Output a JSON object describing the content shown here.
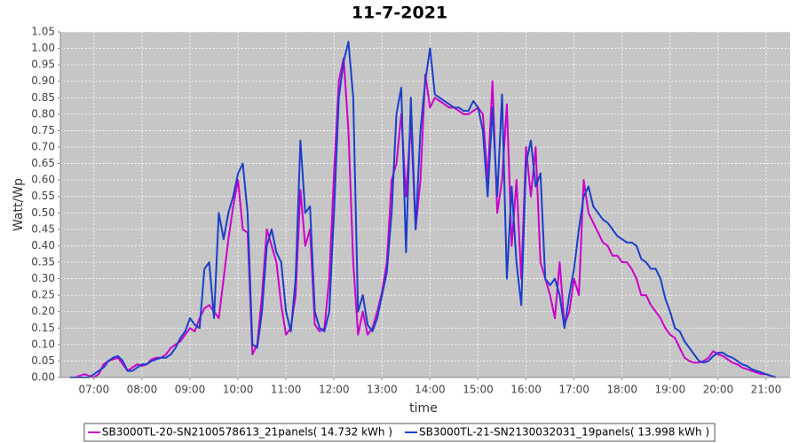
{
  "chart_data": {
    "type": "line",
    "title": "11-7-2021",
    "x_label": "time",
    "y_label": "Watt/Wp",
    "x": [
      6.5,
      6.6,
      6.7,
      6.8,
      6.9,
      7.0,
      7.1,
      7.2,
      7.3,
      7.4,
      7.5,
      7.6,
      7.7,
      7.8,
      7.9,
      8.0,
      8.1,
      8.2,
      8.3,
      8.4,
      8.5,
      8.6,
      8.7,
      8.8,
      8.9,
      9.0,
      9.1,
      9.2,
      9.3,
      9.4,
      9.5,
      9.6,
      9.7,
      9.8,
      9.9,
      10.0,
      10.1,
      10.2,
      10.3,
      10.4,
      10.5,
      10.6,
      10.7,
      10.8,
      10.9,
      11.0,
      11.1,
      11.2,
      11.3,
      11.4,
      11.5,
      11.6,
      11.7,
      11.8,
      11.9,
      12.0,
      12.1,
      12.2,
      12.3,
      12.4,
      12.5,
      12.6,
      12.7,
      12.8,
      12.9,
      13.0,
      13.1,
      13.2,
      13.3,
      13.4,
      13.5,
      13.6,
      13.7,
      13.8,
      13.9,
      14.0,
      14.1,
      14.2,
      14.3,
      14.4,
      14.5,
      14.6,
      14.7,
      14.8,
      14.9,
      15.0,
      15.1,
      15.2,
      15.3,
      15.4,
      15.5,
      15.6,
      15.7,
      15.8,
      15.9,
      16.0,
      16.1,
      16.2,
      16.3,
      16.4,
      16.5,
      16.6,
      16.7,
      16.8,
      16.9,
      17.0,
      17.1,
      17.2,
      17.3,
      17.4,
      17.5,
      17.6,
      17.7,
      17.8,
      17.9,
      18.0,
      18.1,
      18.2,
      18.3,
      18.4,
      18.5,
      18.6,
      18.7,
      18.8,
      18.9,
      19.0,
      19.1,
      19.2,
      19.3,
      19.4,
      19.5,
      19.6,
      19.7,
      19.8,
      19.9,
      20.0,
      20.1,
      20.2,
      20.3,
      20.4,
      20.5,
      20.6,
      20.7,
      20.8,
      20.9,
      21.0,
      21.1,
      21.2
    ],
    "series": [
      {
        "name": "SB3000TL-20-SN2100578613_21panels( 14.732 kWh )",
        "color": "#cc00cc",
        "values": [
          0,
          0,
          0.005,
          0.01,
          0.005,
          0,
          0.01,
          0.04,
          0.05,
          0.055,
          0.06,
          0.04,
          0.02,
          0.03,
          0.04,
          0.035,
          0.04,
          0.055,
          0.06,
          0.06,
          0.07,
          0.09,
          0.1,
          0.11,
          0.13,
          0.15,
          0.14,
          0.18,
          0.21,
          0.22,
          0.2,
          0.18,
          0.3,
          0.42,
          0.52,
          0.6,
          0.45,
          0.44,
          0.07,
          0.1,
          0.25,
          0.45,
          0.4,
          0.35,
          0.22,
          0.13,
          0.15,
          0.25,
          0.57,
          0.4,
          0.45,
          0.16,
          0.14,
          0.15,
          0.3,
          0.62,
          0.9,
          0.97,
          0.75,
          0.35,
          0.13,
          0.2,
          0.13,
          0.15,
          0.2,
          0.26,
          0.35,
          0.6,
          0.65,
          0.8,
          0.55,
          0.78,
          0.45,
          0.6,
          0.92,
          0.82,
          0.85,
          0.84,
          0.83,
          0.82,
          0.82,
          0.81,
          0.8,
          0.8,
          0.81,
          0.82,
          0.8,
          0.6,
          0.9,
          0.5,
          0.6,
          0.83,
          0.4,
          0.6,
          0.3,
          0.7,
          0.55,
          0.7,
          0.35,
          0.3,
          0.25,
          0.18,
          0.35,
          0.16,
          0.2,
          0.3,
          0.25,
          0.6,
          0.5,
          0.47,
          0.44,
          0.41,
          0.4,
          0.37,
          0.37,
          0.35,
          0.35,
          0.33,
          0.3,
          0.25,
          0.25,
          0.22,
          0.2,
          0.18,
          0.15,
          0.13,
          0.12,
          0.09,
          0.06,
          0.05,
          0.045,
          0.045,
          0.05,
          0.06,
          0.08,
          0.07,
          0.065,
          0.055,
          0.045,
          0.04,
          0.03,
          0.025,
          0.02,
          0.015,
          0.01,
          0.01,
          0.005,
          0
        ]
      },
      {
        "name": "SB3000TL-21-SN2130032031_19panels( 13.998 kWh )",
        "color": "#1a3fcc",
        "values": [
          0,
          0,
          0,
          0,
          0,
          0.01,
          0.02,
          0.03,
          0.05,
          0.06,
          0.065,
          0.05,
          0.02,
          0.02,
          0.03,
          0.04,
          0.04,
          0.05,
          0.055,
          0.06,
          0.06,
          0.07,
          0.09,
          0.12,
          0.14,
          0.18,
          0.16,
          0.15,
          0.33,
          0.35,
          0.18,
          0.5,
          0.42,
          0.5,
          0.55,
          0.62,
          0.65,
          0.5,
          0.1,
          0.09,
          0.2,
          0.4,
          0.45,
          0.38,
          0.35,
          0.2,
          0.14,
          0.3,
          0.72,
          0.5,
          0.52,
          0.2,
          0.15,
          0.14,
          0.2,
          0.5,
          0.85,
          0.96,
          1.02,
          0.85,
          0.2,
          0.25,
          0.16,
          0.14,
          0.18,
          0.25,
          0.32,
          0.5,
          0.8,
          0.88,
          0.38,
          0.85,
          0.45,
          0.75,
          0.9,
          1.0,
          0.86,
          0.85,
          0.84,
          0.83,
          0.82,
          0.82,
          0.81,
          0.81,
          0.84,
          0.82,
          0.75,
          0.55,
          0.82,
          0.55,
          0.86,
          0.3,
          0.58,
          0.35,
          0.22,
          0.65,
          0.72,
          0.58,
          0.62,
          0.3,
          0.28,
          0.3,
          0.25,
          0.15,
          0.25,
          0.33,
          0.45,
          0.55,
          0.58,
          0.52,
          0.5,
          0.48,
          0.47,
          0.45,
          0.43,
          0.42,
          0.41,
          0.41,
          0.4,
          0.36,
          0.35,
          0.33,
          0.33,
          0.3,
          0.24,
          0.2,
          0.15,
          0.14,
          0.11,
          0.09,
          0.07,
          0.05,
          0.045,
          0.05,
          0.065,
          0.075,
          0.075,
          0.065,
          0.06,
          0.05,
          0.04,
          0.035,
          0.025,
          0.02,
          0.015,
          0.01,
          0.005,
          0
        ]
      }
    ],
    "xlim": [
      6.3,
      21.5
    ],
    "xticks": [
      {
        "value": 7,
        "label": "07:00"
      },
      {
        "value": 8,
        "label": "08:00"
      },
      {
        "value": 9,
        "label": "09:00"
      },
      {
        "value": 10,
        "label": "10:00"
      },
      {
        "value": 11,
        "label": "11:00"
      },
      {
        "value": 12,
        "label": "12:00"
      },
      {
        "value": 13,
        "label": "13:00"
      },
      {
        "value": 14,
        "label": "14:00"
      },
      {
        "value": 15,
        "label": "15:00"
      },
      {
        "value": 16,
        "label": "16:00"
      },
      {
        "value": 17,
        "label": "17:00"
      },
      {
        "value": 18,
        "label": "18:00"
      },
      {
        "value": 19,
        "label": "19:00"
      },
      {
        "value": 20,
        "label": "20:00"
      },
      {
        "value": 21,
        "label": "21:00"
      }
    ],
    "ylim": [
      0,
      1.05
    ],
    "yticks": [
      {
        "value": 0,
        "label": "0.00"
      },
      {
        "value": 0.05,
        "label": "0.05"
      },
      {
        "value": 0.1,
        "label": "0.10"
      },
      {
        "value": 0.15,
        "label": "0.15"
      },
      {
        "value": 0.2,
        "label": "0.20"
      },
      {
        "value": 0.25,
        "label": "0.25"
      },
      {
        "value": 0.3,
        "label": "0.30"
      },
      {
        "value": 0.35,
        "label": "0.35"
      },
      {
        "value": 0.4,
        "label": "0.40"
      },
      {
        "value": 0.45,
        "label": "0.45"
      },
      {
        "value": 0.5,
        "label": "0.50"
      },
      {
        "value": 0.55,
        "label": "0.55"
      },
      {
        "value": 0.6,
        "label": "0.60"
      },
      {
        "value": 0.65,
        "label": "0.65"
      },
      {
        "value": 0.7,
        "label": "0.70"
      },
      {
        "value": 0.75,
        "label": "0.75"
      },
      {
        "value": 0.8,
        "label": "0.80"
      },
      {
        "value": 0.85,
        "label": "0.85"
      },
      {
        "value": 0.9,
        "label": "0.90"
      },
      {
        "value": 0.95,
        "label": "0.95"
      },
      {
        "value": 1.0,
        "label": "1.00"
      },
      {
        "value": 1.05,
        "label": "1.05"
      }
    ],
    "grid": true
  }
}
